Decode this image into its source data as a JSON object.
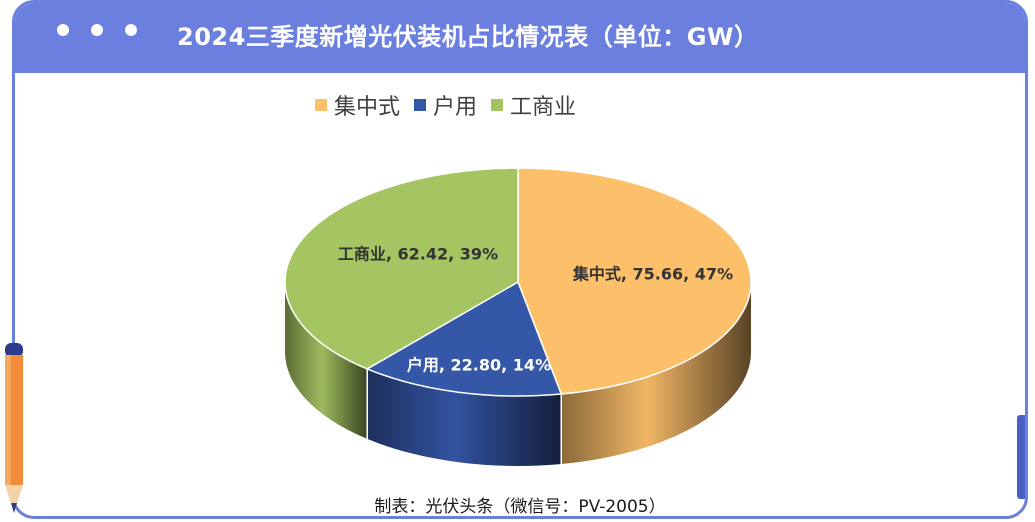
{
  "title": "2024三季度新增光伏装机占比情况表（单位：GW）",
  "footer": "制表：光伏头条（微信号：PV-2005）",
  "colors": {
    "header": "#6b7fde",
    "centralized": "#fdc06a",
    "household": "#3557a8",
    "commercial": "#a5c562"
  },
  "chart_data": {
    "type": "pie",
    "title": "2024三季度新增光伏装机占比情况表（单位：GW）",
    "legend_position": "top",
    "slices": [
      {
        "name": "集中式",
        "value": 75.66,
        "percent": "47%",
        "label": "集中式, 75.66, 47%",
        "color": "#fdc06a"
      },
      {
        "name": "户用",
        "value": 22.8,
        "percent": "14%",
        "label": "户用, 22.80, 14%",
        "color": "#3557a8"
      },
      {
        "name": "工商业",
        "value": 62.42,
        "percent": "39%",
        "label": "工商业, 62.42, 39%",
        "color": "#a5c562"
      }
    ]
  }
}
